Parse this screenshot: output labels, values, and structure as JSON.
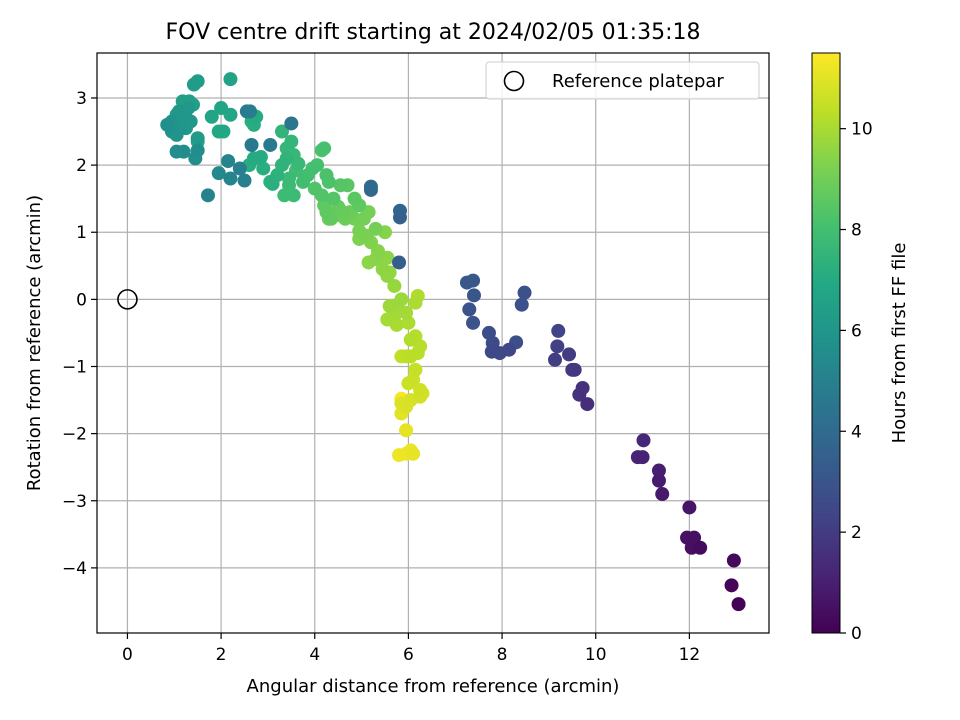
{
  "chart_data": {
    "type": "scatter",
    "title": "FOV centre drift starting at 2024/02/05 01:35:18",
    "xlabel": "Angular distance from reference (arcmin)",
    "ylabel": "Rotation from reference (arcmin)",
    "xlim": [
      -0.65,
      13.7
    ],
    "ylim": [
      -4.97,
      3.67
    ],
    "xticks": [
      0,
      2,
      4,
      6,
      8,
      10,
      12
    ],
    "xtick_labels": [
      "0",
      "2",
      "4",
      "6",
      "8",
      "10",
      "12"
    ],
    "yticks": [
      -4,
      -3,
      -2,
      -1,
      0,
      1,
      2,
      3
    ],
    "ytick_labels": [
      "−4",
      "−3",
      "−2",
      "−1",
      "0",
      "1",
      "2",
      "3"
    ],
    "grid": true,
    "legend": {
      "placement": "top-right",
      "entries": [
        {
          "label": "Reference platepar",
          "marker": "open-circle"
        }
      ]
    },
    "reference_point": {
      "x": 0,
      "y": 0
    },
    "colorbar": {
      "label": "Hours from first FF file",
      "range": [
        0,
        11.5
      ],
      "ticks": [
        0,
        2,
        4,
        6,
        8,
        10
      ],
      "tick_labels": [
        "0",
        "2",
        "4",
        "6",
        "8",
        "10"
      ],
      "colormap": "viridis"
    },
    "points": [
      [
        13.05,
        -4.54,
        0.05
      ],
      [
        12.9,
        -4.26,
        0.15
      ],
      [
        12.95,
        -3.89,
        0.25
      ],
      [
        12.23,
        -3.7,
        0.35
      ],
      [
        12.05,
        -3.7,
        0.45
      ],
      [
        12.1,
        -3.55,
        0.5
      ],
      [
        11.95,
        -3.55,
        0.55
      ],
      [
        12.0,
        -3.1,
        0.65
      ],
      [
        11.42,
        -2.9,
        0.8
      ],
      [
        11.35,
        -2.7,
        0.9
      ],
      [
        11.35,
        -2.55,
        1.0
      ],
      [
        11.0,
        -2.35,
        1.1
      ],
      [
        10.9,
        -2.35,
        1.15
      ],
      [
        11.02,
        -2.1,
        1.25
      ],
      [
        9.82,
        -1.56,
        1.5
      ],
      [
        9.72,
        -1.32,
        1.6
      ],
      [
        9.65,
        -1.42,
        1.7
      ],
      [
        9.55,
        -1.05,
        1.8
      ],
      [
        9.5,
        -1.05,
        1.9
      ],
      [
        9.43,
        -0.82,
        2.0
      ],
      [
        9.13,
        -0.9,
        2.1
      ],
      [
        9.18,
        -0.7,
        2.2
      ],
      [
        9.2,
        -0.47,
        2.3
      ],
      [
        8.15,
        -0.75,
        2.4
      ],
      [
        7.95,
        -0.8,
        2.5
      ],
      [
        7.78,
        -0.78,
        2.55
      ],
      [
        7.8,
        -0.65,
        2.6
      ],
      [
        7.72,
        -0.5,
        2.7
      ],
      [
        8.3,
        -0.64,
        2.75
      ],
      [
        8.48,
        0.1,
        2.8
      ],
      [
        8.42,
        -0.08,
        2.85
      ],
      [
        7.38,
        -0.35,
        2.9
      ],
      [
        7.3,
        -0.15,
        3.0
      ],
      [
        7.4,
        0.06,
        3.05
      ],
      [
        7.25,
        0.25,
        3.1
      ],
      [
        7.38,
        0.28,
        3.15
      ],
      [
        5.8,
        0.55,
        3.4
      ],
      [
        5.82,
        1.22,
        3.6
      ],
      [
        5.82,
        1.32,
        3.7
      ],
      [
        5.2,
        1.63,
        3.9
      ],
      [
        5.2,
        1.68,
        3.95
      ],
      [
        3.5,
        2.62,
        4.5
      ],
      [
        2.65,
        2.3,
        4.6
      ],
      [
        3.05,
        2.3,
        4.7
      ],
      [
        2.55,
        2.8,
        4.8
      ],
      [
        2.62,
        2.8,
        4.85
      ],
      [
        2.4,
        1.95,
        4.9
      ],
      [
        2.5,
        1.77,
        5.0
      ],
      [
        1.72,
        1.55,
        5.1
      ],
      [
        2.2,
        1.8,
        5.15
      ],
      [
        2.15,
        2.06,
        5.2
      ],
      [
        1.95,
        1.88,
        5.4
      ],
      [
        1.05,
        2.2,
        5.5
      ],
      [
        1.2,
        2.2,
        5.55
      ],
      [
        1.5,
        2.22,
        5.6
      ],
      [
        1.45,
        2.1,
        5.65
      ],
      [
        0.85,
        2.6,
        5.7
      ],
      [
        0.95,
        2.5,
        5.8
      ],
      [
        0.95,
        2.65,
        5.8
      ],
      [
        1.05,
        2.45,
        5.9
      ],
      [
        1.15,
        2.55,
        5.95
      ],
      [
        1.25,
        2.7,
        6.0
      ],
      [
        1.1,
        2.8,
        6.05
      ],
      [
        1.3,
        2.85,
        6.1
      ],
      [
        1.35,
        2.65,
        6.15
      ],
      [
        1.25,
        2.55,
        6.2
      ],
      [
        1.5,
        2.4,
        6.2
      ],
      [
        1.42,
        3.2,
        6.3
      ],
      [
        1.5,
        3.25,
        6.35
      ],
      [
        1.18,
        2.95,
        6.4
      ],
      [
        1.32,
        2.95,
        6.45
      ],
      [
        1.4,
        2.9,
        6.5
      ],
      [
        1.05,
        2.75,
        6.55
      ],
      [
        1.15,
        2.6,
        6.6
      ],
      [
        2.2,
        3.28,
        6.65
      ],
      [
        1.8,
        2.72,
        6.7
      ],
      [
        2.0,
        2.85,
        6.75
      ],
      [
        2.2,
        2.75,
        6.8
      ],
      [
        1.95,
        2.5,
        6.85
      ],
      [
        2.05,
        2.5,
        6.9
      ],
      [
        1.5,
        2.35,
        6.95
      ],
      [
        2.7,
        2.1,
        7.0
      ],
      [
        2.85,
        2.12,
        7.0
      ],
      [
        2.75,
        2.72,
        7.05
      ],
      [
        2.65,
        2.65,
        7.1
      ],
      [
        2.7,
        2.6,
        7.1
      ],
      [
        2.6,
        2.0,
        7.15
      ],
      [
        2.9,
        1.95,
        7.2
      ],
      [
        3.1,
        1.72,
        7.25
      ],
      [
        3.05,
        1.75,
        7.3
      ],
      [
        3.2,
        1.85,
        7.35
      ],
      [
        3.3,
        2.0,
        7.4
      ],
      [
        3.4,
        2.1,
        7.45
      ],
      [
        3.3,
        2.5,
        7.5
      ],
      [
        3.5,
        2.35,
        7.55
      ],
      [
        3.4,
        2.25,
        7.6
      ],
      [
        3.55,
        2.15,
        7.65
      ],
      [
        3.65,
        2.02,
        7.7
      ],
      [
        3.45,
        1.8,
        7.75
      ],
      [
        3.55,
        1.55,
        7.8
      ],
      [
        3.35,
        1.55,
        7.8
      ],
      [
        3.45,
        1.7,
        7.85
      ],
      [
        3.6,
        1.92,
        7.9
      ],
      [
        3.75,
        1.75,
        7.95
      ],
      [
        3.85,
        1.85,
        8.0
      ],
      [
        3.95,
        1.95,
        8.05
      ],
      [
        4.05,
        2.0,
        8.1
      ],
      [
        4.2,
        2.25,
        8.1
      ],
      [
        4.15,
        2.22,
        8.15
      ],
      [
        4.25,
        1.85,
        8.2
      ],
      [
        4.3,
        1.75,
        8.25
      ],
      [
        4.0,
        1.65,
        8.3
      ],
      [
        4.15,
        1.55,
        8.35
      ],
      [
        4.4,
        1.5,
        8.4
      ],
      [
        4.55,
        1.7,
        8.45
      ],
      [
        4.7,
        1.7,
        8.5
      ],
      [
        4.85,
        1.5,
        8.55
      ],
      [
        4.95,
        1.4,
        8.6
      ],
      [
        4.2,
        1.4,
        8.6
      ],
      [
        4.25,
        1.3,
        8.65
      ],
      [
        4.35,
        1.2,
        8.7
      ],
      [
        4.5,
        1.38,
        8.75
      ],
      [
        4.6,
        1.3,
        8.8
      ],
      [
        4.3,
        1.2,
        8.85
      ],
      [
        4.55,
        1.25,
        8.9
      ],
      [
        4.75,
        1.3,
        8.9
      ],
      [
        4.65,
        1.2,
        8.95
      ],
      [
        4.85,
        1.2,
        9.0
      ],
      [
        5.05,
        1.2,
        9.05
      ],
      [
        5.15,
        1.3,
        9.1
      ],
      [
        5.3,
        1.05,
        9.1
      ],
      [
        4.95,
        1.02,
        9.15
      ],
      [
        5.1,
        0.95,
        9.2
      ],
      [
        4.95,
        0.9,
        9.25
      ],
      [
        5.2,
        0.85,
        9.3
      ],
      [
        5.5,
        1.0,
        9.35
      ],
      [
        5.35,
        0.72,
        9.4
      ],
      [
        5.3,
        0.6,
        9.45
      ],
      [
        5.15,
        0.55,
        9.5
      ],
      [
        5.55,
        0.62,
        9.5
      ],
      [
        5.45,
        0.45,
        9.55
      ],
      [
        5.55,
        0.35,
        9.6
      ],
      [
        5.6,
        0.4,
        9.65
      ],
      [
        5.7,
        0.2,
        9.7
      ],
      [
        5.85,
        0.0,
        9.75
      ],
      [
        5.6,
        -0.1,
        9.8
      ],
      [
        5.75,
        -0.1,
        9.85
      ],
      [
        5.95,
        -0.2,
        9.9
      ],
      [
        5.75,
        -0.2,
        9.9
      ],
      [
        5.55,
        -0.3,
        9.95
      ],
      [
        5.75,
        -0.38,
        10.0
      ],
      [
        6.0,
        -0.35,
        10.05
      ],
      [
        6.15,
        -0.05,
        10.05
      ],
      [
        6.2,
        0.05,
        10.1
      ],
      [
        6.05,
        -0.6,
        10.15
      ],
      [
        6.15,
        -0.55,
        10.2
      ],
      [
        6.25,
        -0.7,
        10.25
      ],
      [
        6.2,
        -0.8,
        10.3
      ],
      [
        6.05,
        -0.85,
        10.3
      ],
      [
        5.95,
        -0.85,
        10.35
      ],
      [
        5.85,
        -0.85,
        10.4
      ],
      [
        6.15,
        -1.05,
        10.5
      ],
      [
        6.1,
        -1.2,
        10.55
      ],
      [
        6.0,
        -1.25,
        10.6
      ],
      [
        6.25,
        -1.35,
        10.65
      ],
      [
        6.25,
        -1.45,
        10.7
      ],
      [
        6.3,
        -1.4,
        10.75
      ],
      [
        6.05,
        -1.5,
        10.8
      ],
      [
        5.95,
        -1.6,
        10.85
      ],
      [
        5.85,
        -1.55,
        10.9
      ],
      [
        5.85,
        -1.7,
        11.0
      ],
      [
        5.95,
        -1.95,
        11.05
      ],
      [
        6.1,
        -2.3,
        11.1
      ],
      [
        6.05,
        -2.25,
        11.15
      ],
      [
        5.95,
        -2.3,
        11.2
      ],
      [
        5.8,
        -2.32,
        11.25
      ],
      [
        5.85,
        -1.48,
        11.4
      ]
    ]
  }
}
